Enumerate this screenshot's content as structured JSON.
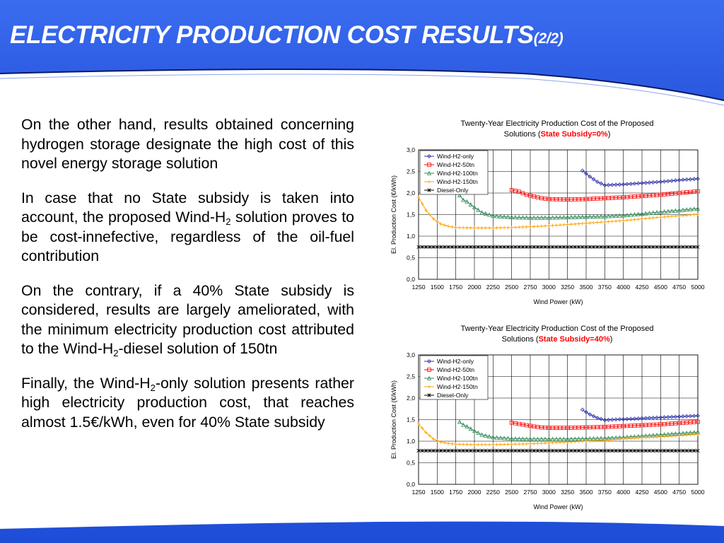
{
  "slide": {
    "title": "ELECTRICITY PRODUCTION COST RESULTS",
    "title_suffix": "(2/2)",
    "colors": {
      "header_blue": "#2f63e8",
      "footer_blue": "#1f4fd8",
      "line_navy": "#0a1a66"
    }
  },
  "body": {
    "p1": "On the other hand, results obtained concerning hydrogen storage designate the high cost of this novel energy storage solution",
    "p2_a": "In case that no State subsidy is taken into account, the proposed Wind-H",
    "p2_sub": "2",
    "p2_b": " solution proves to be cost-innefective, regardless of the oil-fuel contribution",
    "p3_a": "On the contrary, if a 40% State subsidy is considered, results are largely ameliorated, with the minimum electricity production cost attributed to the Wind-H",
    "p3_sub": "2",
    "p3_b": "-diesel solution of 150tn",
    "p4_a": "Finally, the Wind-H",
    "p4_sub": "2",
    "p4_b": "-only solution presents rather high electricity production cost, that reaches almost 1.5€/kWh, even for 40% State subsidy"
  },
  "chart_data": [
    {
      "type": "line",
      "title_line1": "Twenty-Year Electricity Production Cost of the Proposed",
      "title_line2_pre": "Solutions (",
      "title_highlight": "State Subsidy=0%",
      "title_line2_post": ")",
      "highlight_color": "#ff0000",
      "xlabel": "Wind Power (kW)",
      "ylabel": "El. Production Cost (€/kWh)",
      "xlim": [
        1250,
        5000
      ],
      "ylim": [
        0,
        3
      ],
      "xticks": [
        "1250",
        "1500",
        "1750",
        "2000",
        "2250",
        "2500",
        "2750",
        "3000",
        "3250",
        "3500",
        "3750",
        "4000",
        "4250",
        "4500",
        "4750",
        "5000"
      ],
      "yticks": [
        "0,0",
        "0,5",
        "1,0",
        "1,5",
        "2,0",
        "2,5",
        "3,0"
      ],
      "grid": true,
      "legend_position": "top-left",
      "series": [
        {
          "name": "Wind-H2-only",
          "color": "#2b2fa8",
          "marker": "diamond",
          "x": [
            3450,
            3550,
            3650,
            3750,
            3850,
            4000,
            4250,
            4500,
            4750,
            5000
          ],
          "y": [
            2.52,
            2.38,
            2.26,
            2.18,
            2.19,
            2.2,
            2.23,
            2.26,
            2.3,
            2.33
          ]
        },
        {
          "name": "Wind-H2-50tn",
          "color": "#ff0000",
          "marker": "square",
          "x": [
            2500,
            2600,
            2700,
            2800,
            2900,
            3000,
            3250,
            3500,
            3750,
            4000,
            4250,
            4500,
            4750,
            5000
          ],
          "y": [
            2.07,
            2.03,
            1.96,
            1.92,
            1.88,
            1.86,
            1.85,
            1.86,
            1.88,
            1.9,
            1.93,
            1.96,
            2.0,
            2.04
          ]
        },
        {
          "name": "Wind-H2-100tn",
          "color": "#2e8b57",
          "marker": "triangle",
          "x": [
            1800,
            1850,
            1900,
            2000,
            2100,
            2250,
            2500,
            2750,
            3000,
            3250,
            3500,
            3750,
            4000,
            4250,
            4500,
            4750,
            5000
          ],
          "y": [
            1.95,
            1.84,
            1.8,
            1.67,
            1.55,
            1.47,
            1.44,
            1.43,
            1.43,
            1.44,
            1.45,
            1.46,
            1.48,
            1.52,
            1.56,
            1.6,
            1.64
          ]
        },
        {
          "name": "Wind-H2-150tn",
          "color": "#ffa000",
          "marker": "plus",
          "x": [
            1250,
            1350,
            1450,
            1550,
            1650,
            1750,
            2000,
            2250,
            2500,
            2750,
            3000,
            3250,
            3500,
            3750,
            4000,
            4250,
            4500,
            4750,
            5000
          ],
          "y": [
            1.9,
            1.6,
            1.4,
            1.28,
            1.23,
            1.2,
            1.19,
            1.19,
            1.2,
            1.22,
            1.24,
            1.27,
            1.3,
            1.33,
            1.36,
            1.4,
            1.44,
            1.47,
            1.51
          ]
        },
        {
          "name": "Diesel-Only",
          "color": "#000000",
          "marker": "star",
          "x": [
            1250,
            5000
          ],
          "y": [
            0.75,
            0.75
          ]
        }
      ]
    },
    {
      "type": "line",
      "title_line1": "Twenty-Year Electricity Production Cost of the Proposed",
      "title_line2_pre": "Solutions (",
      "title_highlight": "State Subsidy=40%",
      "title_line2_post": ")",
      "highlight_color": "#ff0000",
      "xlabel": "Wind Power (kW)",
      "ylabel": "El. Production Cost (€/kWh)",
      "xlim": [
        1250,
        5000
      ],
      "ylim": [
        0,
        3
      ],
      "xticks": [
        "1250",
        "1500",
        "1750",
        "2000",
        "2250",
        "2500",
        "2750",
        "3000",
        "3250",
        "3500",
        "3750",
        "4000",
        "4250",
        "4500",
        "4750",
        "5000"
      ],
      "yticks": [
        "0,0",
        "0,5",
        "1,0",
        "1,5",
        "2,0",
        "2,5",
        "3,0"
      ],
      "grid": true,
      "legend_position": "top-left",
      "series": [
        {
          "name": "Wind-H2-only",
          "color": "#2b2fa8",
          "marker": "diamond",
          "x": [
            3450,
            3550,
            3650,
            3750,
            3850,
            4000,
            4250,
            4500,
            4750,
            5000
          ],
          "y": [
            1.73,
            1.62,
            1.54,
            1.49,
            1.5,
            1.51,
            1.53,
            1.55,
            1.57,
            1.59
          ]
        },
        {
          "name": "Wind-H2-50tn",
          "color": "#ff0000",
          "marker": "square",
          "x": [
            2500,
            2600,
            2700,
            2800,
            2900,
            3000,
            3250,
            3500,
            3750,
            4000,
            4250,
            4500,
            4750,
            5000
          ],
          "y": [
            1.43,
            1.4,
            1.37,
            1.34,
            1.32,
            1.31,
            1.31,
            1.32,
            1.33,
            1.35,
            1.37,
            1.39,
            1.42,
            1.45
          ]
        },
        {
          "name": "Wind-H2-100tn",
          "color": "#2e8b57",
          "marker": "triangle",
          "x": [
            1800,
            1850,
            1900,
            2000,
            2100,
            2250,
            2500,
            2750,
            3000,
            3250,
            3500,
            3750,
            4000,
            4250,
            4500,
            4750,
            5000
          ],
          "y": [
            1.45,
            1.38,
            1.34,
            1.24,
            1.15,
            1.09,
            1.06,
            1.05,
            1.05,
            1.05,
            1.06,
            1.07,
            1.09,
            1.12,
            1.15,
            1.18,
            1.21
          ]
        },
        {
          "name": "Wind-H2-150tn",
          "color": "#ffa000",
          "marker": "plus",
          "x": [
            1250,
            1350,
            1450,
            1550,
            1650,
            1750,
            2000,
            2250,
            2500,
            2750,
            3000,
            3250,
            3500,
            3750,
            4000,
            4250,
            4500,
            4750,
            5000
          ],
          "y": [
            1.4,
            1.2,
            1.05,
            0.98,
            0.95,
            0.93,
            0.92,
            0.92,
            0.93,
            0.94,
            0.96,
            0.98,
            1.0,
            1.02,
            1.05,
            1.08,
            1.1,
            1.13,
            1.16
          ]
        },
        {
          "name": "Diesel-Only",
          "color": "#000000",
          "marker": "star",
          "x": [
            1250,
            5000
          ],
          "y": [
            0.78,
            0.78
          ]
        }
      ]
    }
  ]
}
